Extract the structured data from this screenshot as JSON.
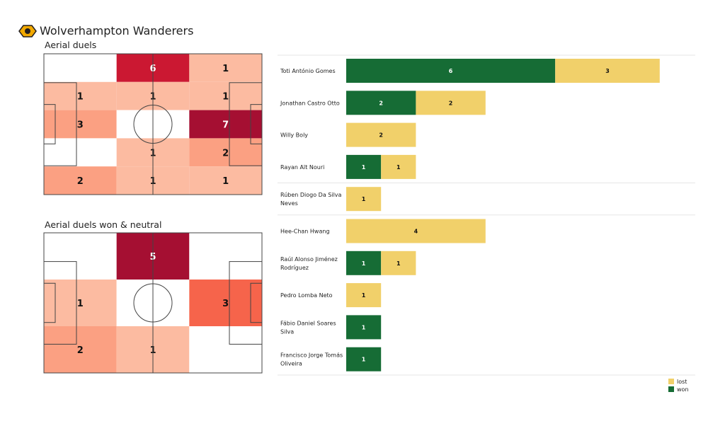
{
  "header": {
    "team": "Wolverhampton Wanderers",
    "logo": "wolves-crest"
  },
  "chart_data": [
    {
      "type": "heatmap",
      "title": "Aerial duels",
      "rows": 5,
      "cols": 3,
      "values": [
        [
          0,
          6,
          1
        ],
        [
          1,
          1,
          1
        ],
        [
          3,
          0,
          7
        ],
        [
          0,
          1,
          2
        ],
        [
          2,
          1,
          1
        ]
      ]
    },
    {
      "type": "heatmap",
      "title": "Aerial duels won & neutral",
      "rows": 3,
      "cols": 3,
      "values": [
        [
          0,
          5,
          0
        ],
        [
          1,
          0,
          3
        ],
        [
          2,
          1,
          0
        ]
      ]
    },
    {
      "type": "bar",
      "orientation": "horizontal",
      "stacked": true,
      "categories": [
        "Toti António Gomes",
        "Jonathan Castro Otto",
        "Willy Boly",
        "Rayan Aït Nouri",
        "Rúben Diogo Da Silva Neves",
        "Hee-Chan Hwang",
        "Raúl Alonso Jiménez Rodríguez",
        "Pedro Lomba Neto",
        "Fábio Daniel Soares Silva",
        "Francisco Jorge Tomás Oliveira"
      ],
      "groups_break_after": [
        3,
        4
      ],
      "series": [
        {
          "name": "won",
          "color": "#166c35",
          "values": [
            6,
            2,
            0,
            1,
            0,
            0,
            1,
            0,
            1,
            1
          ]
        },
        {
          "name": "lost",
          "color": "#f1d06a",
          "values": [
            3,
            2,
            2,
            1,
            1,
            4,
            1,
            1,
            0,
            0
          ]
        }
      ],
      "legend": {
        "position": "bottom-right",
        "items": [
          "lost",
          "won"
        ]
      }
    }
  ]
}
